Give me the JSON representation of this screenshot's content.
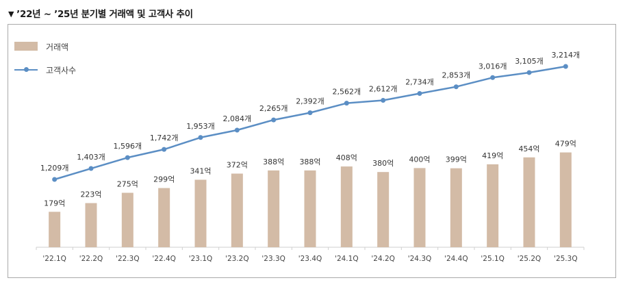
{
  "heading": {
    "marker": "▼",
    "text": "’22년 ~ ’25년 분기별 거래액 및 고객사 추이"
  },
  "colors": {
    "bar": "#d3bba6",
    "line": "#5b8ec4",
    "axis": "#cfcfcf",
    "label": "#333333"
  },
  "chart_data": {
    "type": "bar",
    "categories": [
      "'22.1Q",
      "'22.2Q",
      "'22.3Q",
      "'22.4Q",
      "'23.1Q",
      "'23.2Q",
      "'23.3Q",
      "'23.4Q",
      "'24.1Q",
      "'24.2Q",
      "'24.3Q",
      "'24.4Q",
      "'25.1Q",
      "'25.2Q",
      "'25.3Q"
    ],
    "series": [
      {
        "name": "거래액",
        "type": "bar",
        "values": [
          179,
          223,
          275,
          299,
          341,
          372,
          388,
          388,
          408,
          380,
          400,
          399,
          419,
          454,
          479
        ],
        "labels": [
          "179억",
          "223억",
          "275억",
          "299억",
          "341억",
          "372억",
          "388억",
          "388억",
          "408억",
          "380억",
          "400억",
          "399억",
          "419억",
          "454억",
          "479억"
        ]
      },
      {
        "name": "고객사수",
        "type": "line",
        "values": [
          1209,
          1403,
          1596,
          1742,
          1953,
          2084,
          2265,
          2392,
          2562,
          2612,
          2734,
          2853,
          3016,
          3105,
          3214
        ],
        "labels": [
          "1,209개",
          "1,403개",
          "1,596개",
          "1,742개",
          "1,953개",
          "2,084개",
          "2,265개",
          "2,392개",
          "2,562개",
          "2,612개",
          "2,734개",
          "2,853개",
          "3,016개",
          "3,105개",
          "3,214개"
        ]
      }
    ],
    "legend": "top-left",
    "grid": false
  }
}
